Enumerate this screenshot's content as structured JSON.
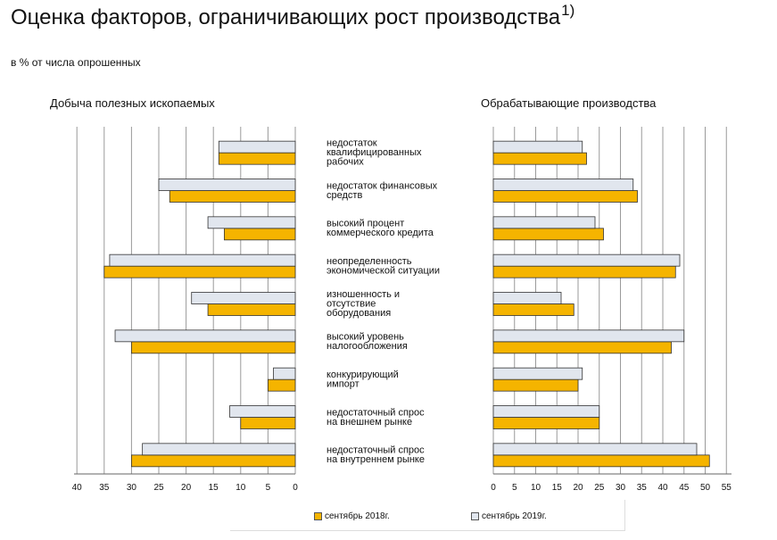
{
  "title": "Оценка факторов, ограничивающих рост производства",
  "title_sup": "1)",
  "subtitle": "в % от числа опрошенных",
  "colors": {
    "s2018": "#F5B400",
    "s2019": "#E1E6EE",
    "grid": "#9a9a9a",
    "bar_border": "#333333"
  },
  "chart_data": {
    "type": "bar",
    "orientation": "horizontal",
    "categories": [
      "недостаток квалифицированных рабочих",
      "недостаток финансовых средств",
      "высокий процент коммерческого кредита",
      "неопределенность экономической ситуации",
      "изношенность и отсутствие оборудования",
      "высокий уровень налогообложения",
      "конкурирующий импорт",
      "недостаточный спрос на внешнем рынке",
      "недостаточный спрос на внутреннем рынке"
    ],
    "category_lines": [
      [
        "недостаток",
        "квалифицированных",
        "рабочих"
      ],
      [
        "недостаток финансовых",
        "средств"
      ],
      [
        "высокий процент",
        "коммерческого кредита"
      ],
      [
        "неопределенность",
        "экономической ситуации"
      ],
      [
        "изношенность и",
        "отсутствие",
        "оборудования"
      ],
      [
        "высокий уровень",
        "налогообложения"
      ],
      [
        "конкурирующий",
        "импорт"
      ],
      [
        "недостаточный спрос",
        "на внешнем рынке"
      ],
      [
        "недостаточный спрос",
        "на внутреннем рынке"
      ]
    ],
    "legend": [
      "сентябрь 2018г.",
      "сентябрь 2019г."
    ],
    "panels": [
      {
        "title": "Добыча полезных ископаемых",
        "direction": "reversed",
        "xlim": [
          0,
          40
        ],
        "ticks": [
          0,
          5,
          10,
          15,
          20,
          25,
          30,
          35,
          40
        ],
        "series": [
          {
            "name": "сентябрь 2018г.",
            "values": [
              14,
              23,
              13,
              35,
              16,
              30,
              5,
              10,
              30
            ]
          },
          {
            "name": "сентябрь 2019г.",
            "values": [
              14,
              25,
              16,
              34,
              19,
              33,
              4,
              12,
              28
            ]
          }
        ]
      },
      {
        "title": "Обрабатывающие производства",
        "direction": "normal",
        "xlim": [
          0,
          55
        ],
        "ticks": [
          0,
          5,
          10,
          15,
          20,
          25,
          30,
          35,
          40,
          45,
          50,
          55
        ],
        "series": [
          {
            "name": "сентябрь 2018г.",
            "values": [
              22,
              34,
              26,
              43,
              19,
              42,
              20,
              25,
              51
            ]
          },
          {
            "name": "сентябрь 2019г.",
            "values": [
              21,
              33,
              24,
              44,
              16,
              45,
              21,
              25,
              48
            ]
          }
        ]
      }
    ]
  }
}
